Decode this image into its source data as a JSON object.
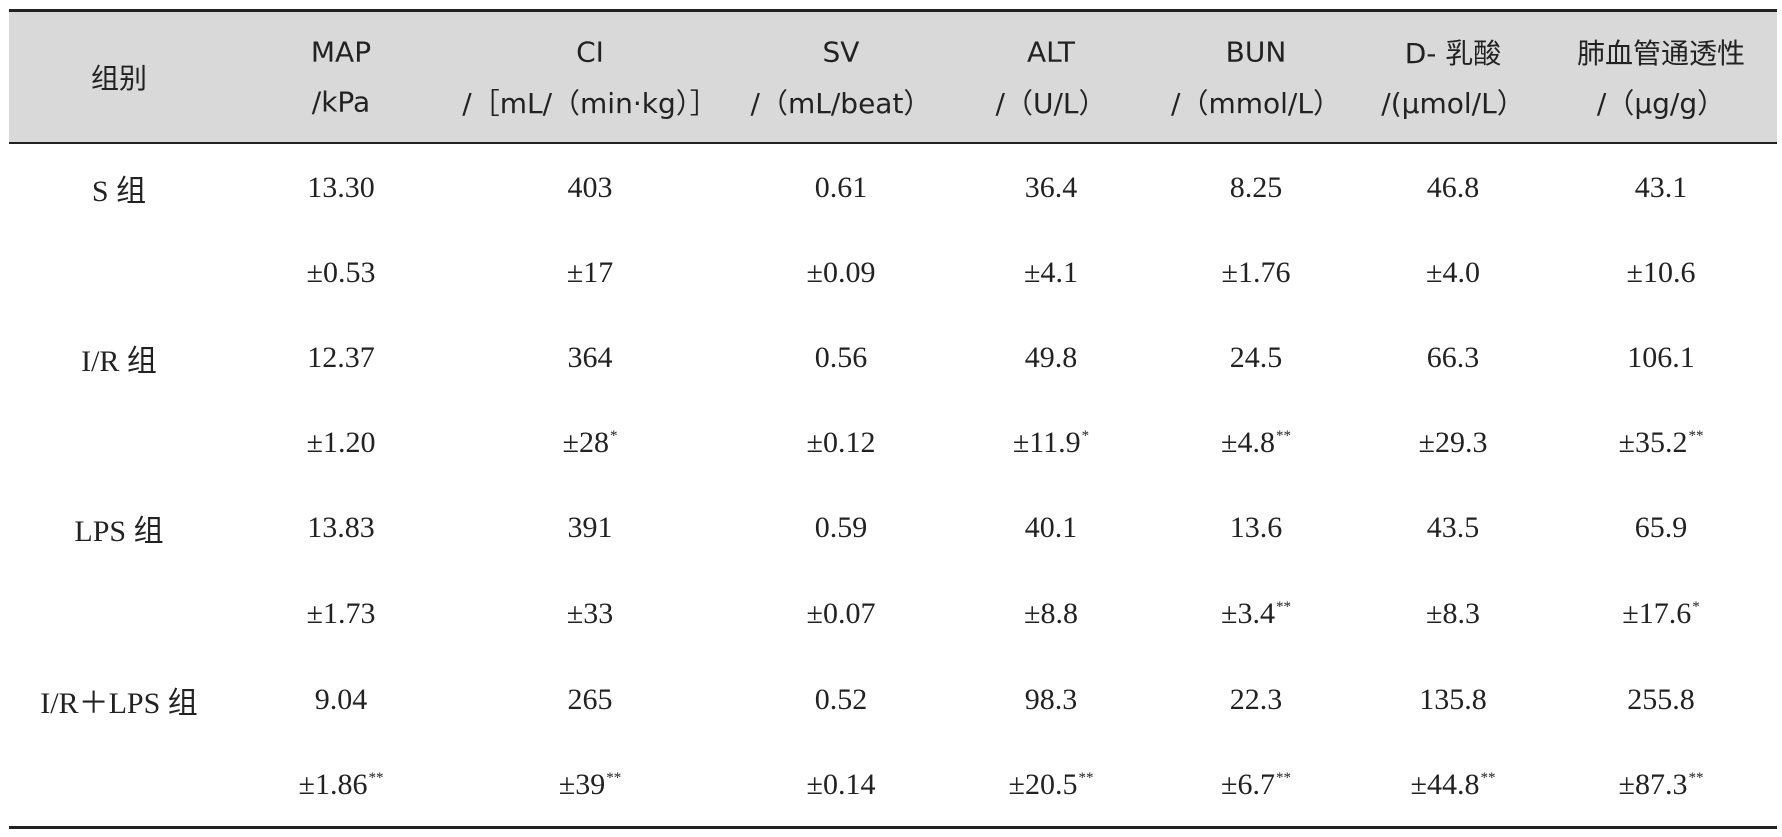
{
  "table": {
    "columns": [
      {
        "name": "组别"
      },
      {
        "name": "MAP",
        "unit": "/kPa"
      },
      {
        "name": "CI",
        "unit": "/［mL/（min·kg）］"
      },
      {
        "name": "SV",
        "unit": "/（mL/beat）"
      },
      {
        "name": "ALT",
        "unit": "/（U/L）"
      },
      {
        "name": "BUN",
        "unit": "/（mmol/L）"
      },
      {
        "name": "D- 乳酸",
        "unit": "/(μmol/L）"
      },
      {
        "name": "肺血管通透性",
        "unit": "/（μg/g）"
      }
    ],
    "groups": [
      {
        "name": "S 组",
        "means": [
          "13.30",
          "403",
          "0.61",
          "36.4",
          "8.25",
          "46.8",
          "43.1"
        ],
        "sds": [
          {
            "text": "±0.53"
          },
          {
            "text": "±17"
          },
          {
            "text": "±0.09"
          },
          {
            "text": "±4.1"
          },
          {
            "text": "±1.76"
          },
          {
            "text": "±4.0"
          },
          {
            "text": "±10.6"
          }
        ]
      },
      {
        "name": "I/R 组",
        "means": [
          "12.37",
          "364",
          "0.56",
          "49.8",
          "24.5",
          "66.3",
          "106.1"
        ],
        "sds": [
          {
            "text": "±1.20"
          },
          {
            "text": "±28",
            "mark": "*"
          },
          {
            "text": "±0.12"
          },
          {
            "text": "±11.9",
            "mark": "*"
          },
          {
            "text": "±4.8",
            "mark": "**"
          },
          {
            "text": "±29.3"
          },
          {
            "text": "±35.2",
            "mark": "**"
          }
        ]
      },
      {
        "name": "LPS 组",
        "means": [
          "13.83",
          "391",
          "0.59",
          "40.1",
          "13.6",
          "43.5",
          "65.9"
        ],
        "sds": [
          {
            "text": "±1.73"
          },
          {
            "text": "±33"
          },
          {
            "text": "±0.07"
          },
          {
            "text": "±8.8"
          },
          {
            "text": "±3.4",
            "mark": "**"
          },
          {
            "text": "±8.3"
          },
          {
            "text": "±17.6",
            "mark": "*"
          }
        ]
      },
      {
        "name": "I/R＋LPS 组",
        "means": [
          "9.04",
          "265",
          "0.52",
          "98.3",
          "22.3",
          "135.8",
          "255.8"
        ],
        "sds": [
          {
            "text": "±1.86",
            "mark": "**"
          },
          {
            "text": "±39",
            "mark": "**"
          },
          {
            "text": "±0.14"
          },
          {
            "text": "±20.5",
            "mark": "**"
          },
          {
            "text": "±6.7",
            "mark": "**"
          },
          {
            "text": "±44.8",
            "mark": "**"
          },
          {
            "text": "±87.3",
            "mark": "**"
          }
        ]
      }
    ]
  }
}
